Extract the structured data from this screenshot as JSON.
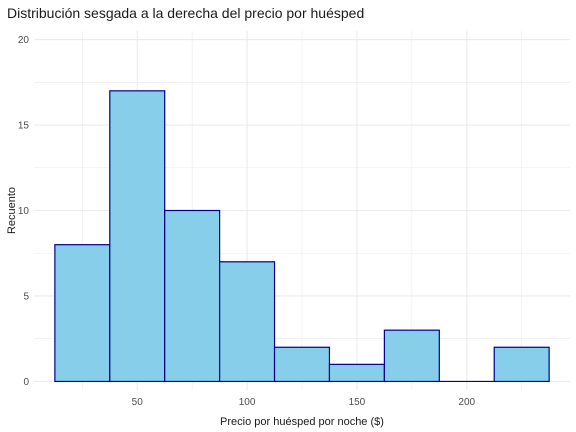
{
  "chart_data": {
    "type": "bar",
    "title": "Distribución sesgada a la derecha del precio por huésped",
    "xlabel": "Precio por huésped por noche ($)",
    "ylabel": "Recuento",
    "bin_edges": [
      12.5,
      37.5,
      62.5,
      87.5,
      112.5,
      137.5,
      162.5,
      187.5,
      212.5,
      237.5
    ],
    "values": [
      8,
      17,
      10,
      7,
      2,
      1,
      3,
      0,
      2
    ],
    "xlim": [
      3,
      247
    ],
    "ylim": [
      -0.5,
      20.5
    ],
    "xticks": [
      50,
      100,
      150,
      200
    ],
    "yticks": [
      0,
      5,
      10,
      15,
      20
    ],
    "grid": true,
    "colors": {
      "fill": "#87CEEB",
      "stroke": "#00008B",
      "grid": "#EBEBEB"
    }
  }
}
